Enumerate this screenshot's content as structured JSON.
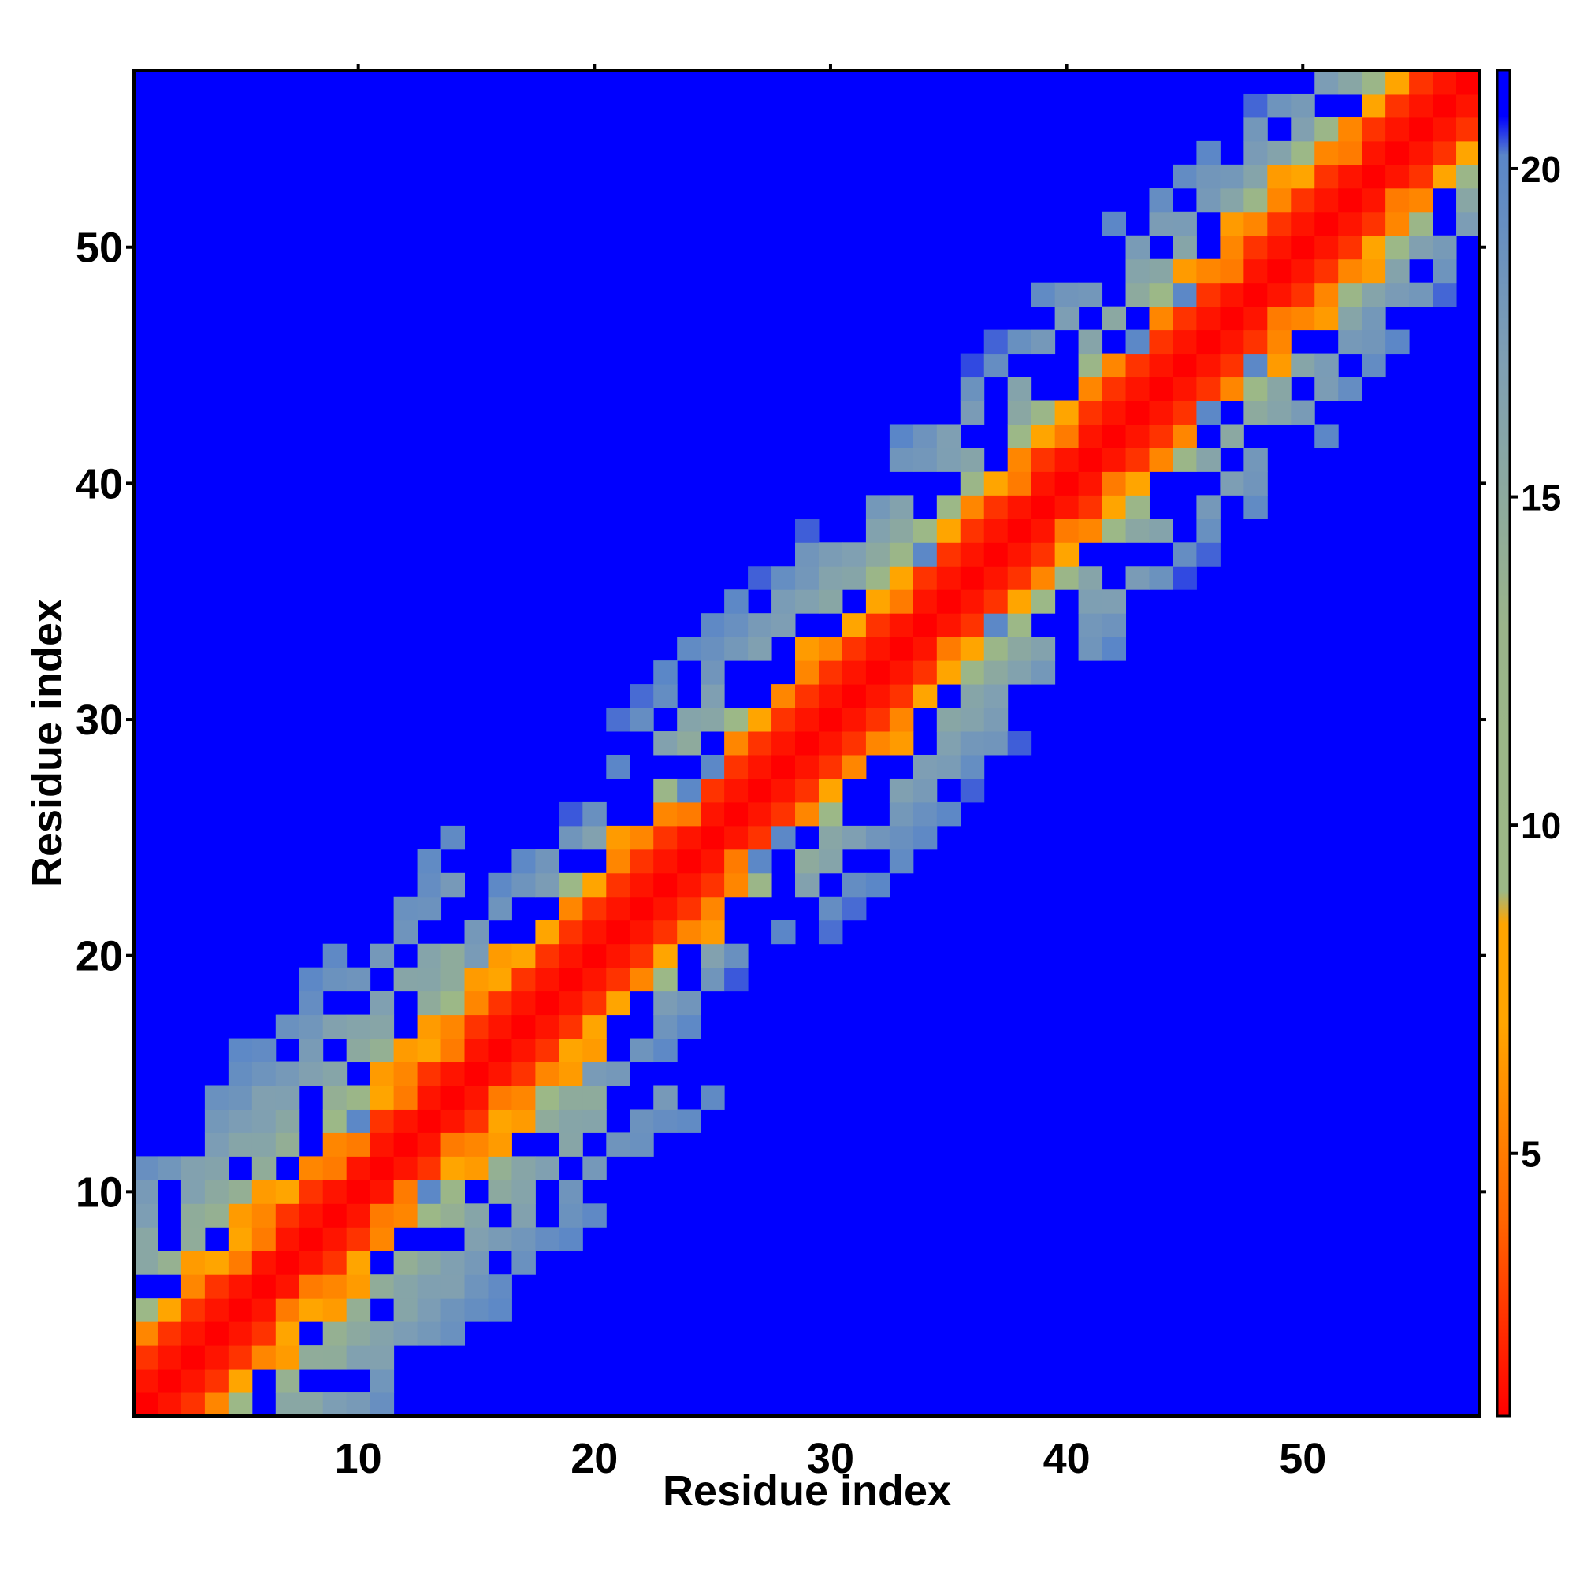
{
  "chart_data": {
    "type": "heatmap",
    "title": "",
    "xlabel": "Residue index",
    "ylabel": "Residue index",
    "n_residues": 57,
    "xlim": [
      0.5,
      57.5
    ],
    "ylim": [
      0.5,
      57.5
    ],
    "x_ticks": [
      10,
      20,
      30,
      40,
      50
    ],
    "y_ticks": [
      10,
      20,
      30,
      40,
      50
    ],
    "colorbar": {
      "min": 1,
      "max": 21.5,
      "ticks": [
        5,
        10,
        15,
        20
      ],
      "stops": [
        {
          "value": 1,
          "color": "#ff0000"
        },
        {
          "value": 4,
          "color": "#ff6600"
        },
        {
          "value": 7,
          "color": "#ffa500"
        },
        {
          "value": 8.5,
          "color": "#ffa500"
        },
        {
          "value": 9,
          "color": "#9cb886"
        },
        {
          "value": 13,
          "color": "#9ab48a"
        },
        {
          "value": 17,
          "color": "#7f9fb3"
        },
        {
          "value": 20.2,
          "color": "#5a86c8"
        },
        {
          "value": 20.8,
          "color": "#0000ff"
        },
        {
          "value": 21.5,
          "color": "#0000ff"
        }
      ]
    },
    "colors": {
      "background": "#0000ff",
      "cutoff_value": 20.8
    },
    "description_of_values": "Symmetric residue-residue distance matrix; red along the diagonal (close), orange near-diagonal, grey-green/blue-grey bands further out, blue beyond cutoff.",
    "bands": [
      {
        "x_from": 1,
        "x_to": 14,
        "half_width_inner": 0,
        "half_width_outer": 11
      },
      {
        "x_from": 14,
        "x_to": 28,
        "half_width_inner": 0,
        "half_width_outer": 7
      },
      {
        "x_from": 28,
        "x_to": 44,
        "half_width_inner": 0,
        "half_width_outer": 9
      },
      {
        "x_from": 44,
        "x_to": 57,
        "half_width_inner": 0,
        "half_width_outer": 8
      }
    ]
  }
}
